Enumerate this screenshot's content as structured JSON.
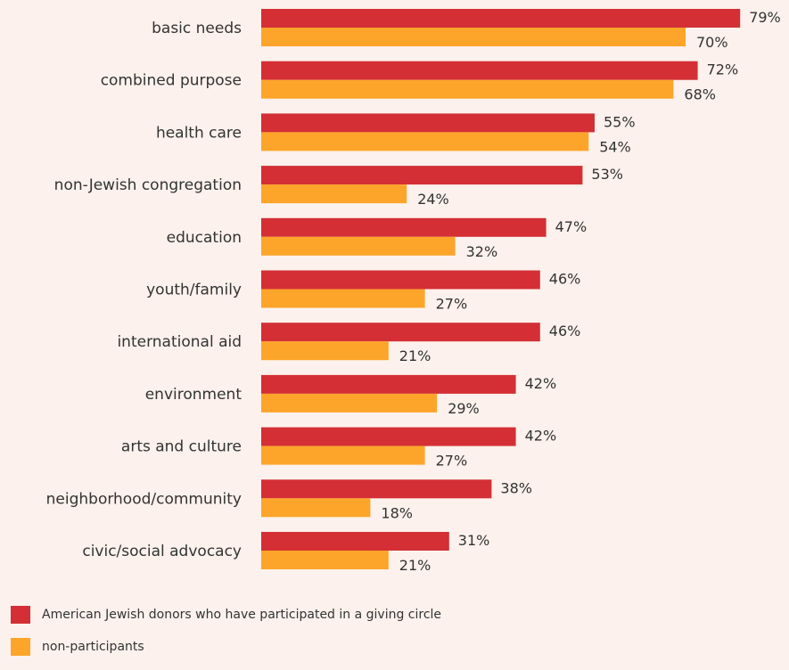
{
  "chart_data": {
    "type": "bar",
    "orientation": "horizontal",
    "categories": [
      "basic needs",
      "combined purpose",
      "health care",
      "non-Jewish congregation",
      "education",
      "youth/family",
      "international aid",
      "environment",
      "arts and culture",
      "neighborhood/community",
      "civic/social advocacy"
    ],
    "series": [
      {
        "name": "American Jewish donors who have participated in a giving circle",
        "color": "#d32f35",
        "values": [
          79,
          72,
          55,
          53,
          47,
          46,
          46,
          42,
          42,
          38,
          31
        ]
      },
      {
        "name": "non-participants",
        "color": "#fda52a",
        "values": [
          70,
          68,
          54,
          24,
          32,
          27,
          21,
          29,
          27,
          18,
          21
        ]
      }
    ],
    "value_suffix": "%",
    "xlim": [
      0,
      100
    ],
    "grid": false,
    "legend_position": "bottom-left"
  },
  "colors": {
    "background": "#fcf1ec",
    "text": "#333333"
  }
}
